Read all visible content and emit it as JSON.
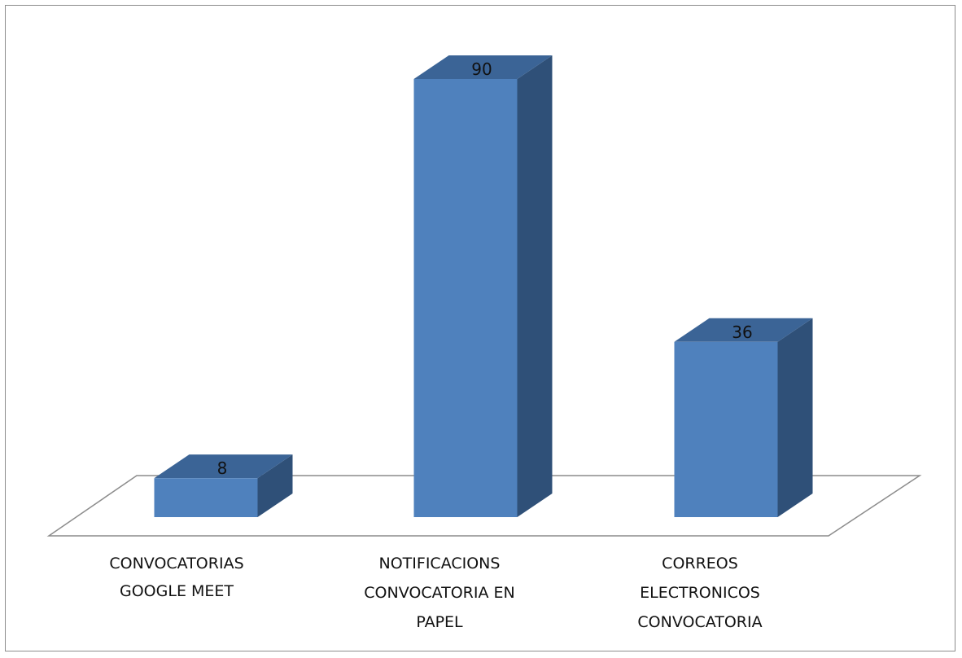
{
  "chart_data": {
    "type": "bar",
    "categories": [
      [
        "CONVOCATORIAS",
        "GOOGLE MEET"
      ],
      [
        "NOTIFICACIONS",
        "CONVOCATORIA EN",
        "PAPEL"
      ],
      [
        "CORREOS",
        "ELECTRONICOS",
        "CONVOCATORIA"
      ]
    ],
    "values": [
      8,
      90,
      36
    ],
    "data_labels": [
      "8",
      "90",
      "36"
    ],
    "title": "",
    "xlabel": "",
    "ylabel": "",
    "ylim": [
      0,
      90
    ],
    "style": "3d-column",
    "grid": false,
    "legend": "none",
    "colors": {
      "bar_front": "#4F81BD",
      "bar_top": "#3B6496",
      "bar_side": "#2F5078",
      "floor_stroke": "#8c8c8c",
      "frame": "#8c8c8c"
    }
  }
}
